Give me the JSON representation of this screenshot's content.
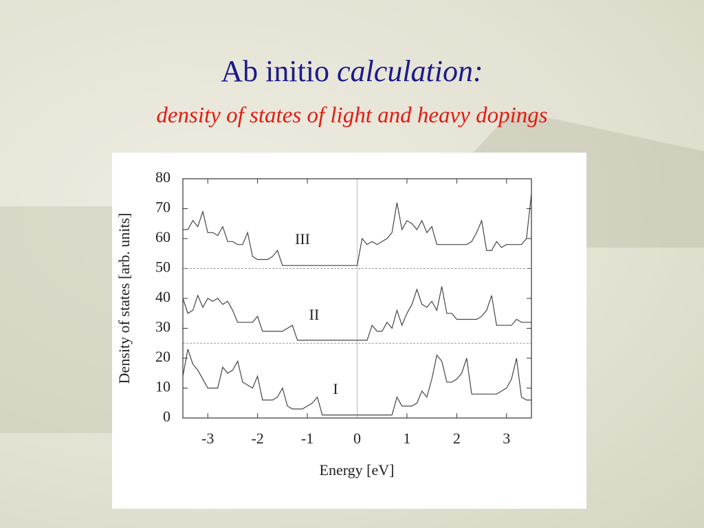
{
  "slide": {
    "title": "Ab initio",
    "title_italic": "calculation:",
    "subtitle": "density of states of light and heavy dopings"
  },
  "chart_data": {
    "type": "line",
    "xlabel": "Energy [eV]",
    "ylabel": "Density of states [arb. units]",
    "xlim": [
      -3.5,
      3.5
    ],
    "ylim": [
      0,
      80
    ],
    "xticks": [
      -3,
      -2,
      -1,
      0,
      1,
      2,
      3
    ],
    "yticks": [
      0,
      10,
      20,
      30,
      40,
      50,
      60,
      70,
      80
    ],
    "hlines": [
      25,
      50
    ],
    "vlines": [
      0
    ],
    "x": [
      -3.5,
      -3.4,
      -3.3,
      -3.2,
      -3.1,
      -3.0,
      -2.9,
      -2.8,
      -2.7,
      -2.6,
      -2.5,
      -2.4,
      -2.3,
      -2.2,
      -2.1,
      -2.0,
      -1.9,
      -1.8,
      -1.7,
      -1.6,
      -1.5,
      -1.4,
      -1.3,
      -1.2,
      -1.1,
      -1.0,
      -0.9,
      -0.8,
      -0.7,
      -0.6,
      -0.5,
      -0.4,
      -0.3,
      -0.2,
      -0.1,
      0.0,
      0.1,
      0.2,
      0.3,
      0.4,
      0.5,
      0.6,
      0.7,
      0.8,
      0.9,
      1.0,
      1.1,
      1.2,
      1.3,
      1.4,
      1.5,
      1.6,
      1.7,
      1.8,
      1.9,
      2.0,
      2.1,
      2.2,
      2.3,
      2.4,
      2.5,
      2.6,
      2.7,
      2.8,
      2.9,
      3.0,
      3.1,
      3.2,
      3.3,
      3.4,
      3.5
    ],
    "series": [
      {
        "name": "I",
        "color": "#444444",
        "values": [
          14,
          23,
          18,
          16,
          13,
          10,
          10,
          10,
          17,
          15,
          16,
          19,
          12,
          11,
          10,
          14,
          6,
          6,
          6,
          7,
          10,
          4,
          3,
          3,
          3,
          4,
          5,
          7,
          1,
          1,
          1,
          1,
          1,
          1,
          1,
          1,
          1,
          1,
          1,
          1,
          1,
          1,
          1,
          7,
          4,
          4,
          4,
          5,
          9,
          7,
          13,
          21,
          19,
          12,
          12,
          13,
          15,
          20,
          8,
          8,
          8,
          8,
          8,
          8,
          9,
          10,
          13,
          20,
          7,
          6,
          6
        ]
      },
      {
        "name": "II",
        "color": "#444444",
        "values": [
          40,
          35,
          36,
          41,
          37,
          40,
          39,
          40,
          38,
          39,
          36,
          32,
          32,
          32,
          32,
          34,
          29,
          29,
          29,
          29,
          29,
          30,
          31,
          26,
          26,
          26,
          26,
          26,
          26,
          26,
          26,
          26,
          26,
          26,
          26,
          26,
          26,
          26,
          31,
          29,
          29,
          32,
          30,
          36,
          31,
          35,
          38,
          43,
          38,
          37,
          39,
          36,
          44,
          35,
          35,
          33,
          33,
          33,
          33,
          33,
          34,
          36,
          41,
          31,
          31,
          31,
          31,
          33,
          32,
          32,
          32
        ]
      },
      {
        "name": "III",
        "color": "#444444",
        "values": [
          63,
          63,
          66,
          64,
          69,
          62,
          62,
          61,
          64,
          59,
          59,
          58,
          58,
          62,
          54,
          53,
          53,
          53,
          54,
          56,
          51,
          51,
          51,
          51,
          51,
          51,
          51,
          51,
          51,
          51,
          51,
          51,
          51,
          51,
          51,
          51,
          60,
          58,
          59,
          58,
          59,
          60,
          62,
          72,
          63,
          66,
          65,
          63,
          66,
          62,
          64,
          58,
          58,
          58,
          58,
          58,
          58,
          58,
          59,
          62,
          66,
          56,
          56,
          59,
          57,
          58,
          58,
          58,
          58,
          60,
          75
        ]
      }
    ]
  }
}
